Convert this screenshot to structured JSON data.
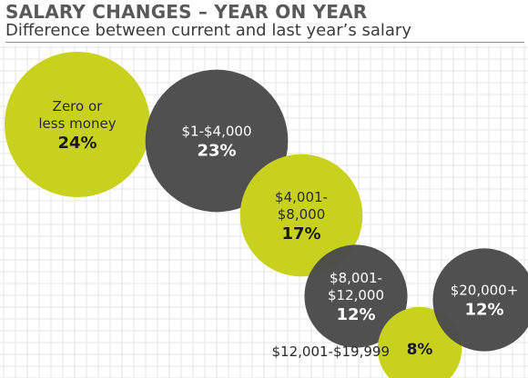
{
  "chart_data": {
    "type": "bubble",
    "title": "SALARY CHANGES – YEAR ON YEAR",
    "subtitle": "Difference between current and last year’s salary",
    "unit": "%",
    "colors": {
      "light": "#c8d21e",
      "dark": "#4a4a4a",
      "grid": "#e6e6e6"
    },
    "bubbles": [
      {
        "category_lines": [
          "Zero or",
          "less money"
        ],
        "value": 24,
        "value_label": "24%",
        "color": "light"
      },
      {
        "category_lines": [
          "$1-$4,000"
        ],
        "value": 23,
        "value_label": "23%",
        "color": "dark"
      },
      {
        "category_lines": [
          "$4,001-",
          "$8,000"
        ],
        "value": 17,
        "value_label": "17%",
        "color": "light"
      },
      {
        "category_lines": [
          "$8,001-",
          "$12,000"
        ],
        "value": 12,
        "value_label": "12%",
        "color": "dark"
      },
      {
        "category_lines": [
          "$12,001-$19,999"
        ],
        "value": 8,
        "value_label": "8%",
        "color": "light"
      },
      {
        "category_lines": [
          "$20,000+"
        ],
        "value": 12,
        "value_label": "12%",
        "color": "dark"
      }
    ]
  }
}
